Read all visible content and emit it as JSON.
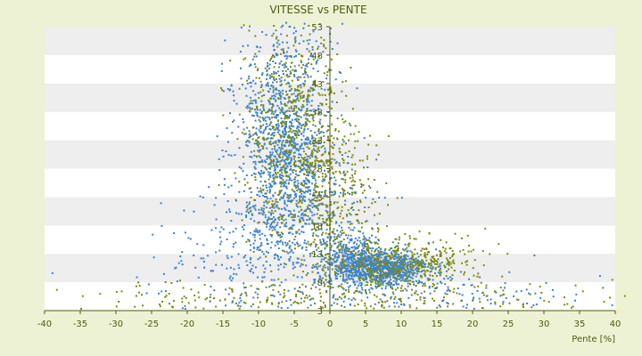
{
  "chart_data": {
    "type": "scatter",
    "title": "VITESSE vs PENTE",
    "xlabel": "Pente [%]",
    "ylabel": "",
    "xlim": [
      -40,
      40
    ],
    "ylim": [
      3,
      53
    ],
    "x_ticks": [
      "-40",
      "-35",
      "-30",
      "-25",
      "-20",
      "-15",
      "-10",
      "-5",
      "0",
      "5",
      "10",
      "15",
      "20",
      "25",
      "30",
      "35",
      "40"
    ],
    "y_ticks": [
      "3",
      "8",
      "13",
      "18",
      "23",
      "28",
      "33",
      "38",
      "43",
      "48",
      "53"
    ],
    "grid": "horizontal bands",
    "legend": "none",
    "colors": {
      "background": "#eef2d4",
      "band_light": "#ffffff",
      "band_dark": "#eeeeee",
      "text": "#4d5a12",
      "axis": "#4d5a12",
      "series_1": "#3b82d0",
      "series_2": "#7c8a10"
    },
    "series": [
      {
        "color": "#3b82d0",
        "clusters": [
          {
            "cx": -6.5,
            "cy": 34,
            "sx": 3.2,
            "sy": 10.5,
            "n": 1100
          },
          {
            "cx": -4.0,
            "cy": 22,
            "sx": 4.5,
            "sy": 7.0,
            "n": 350
          },
          {
            "cx": -12,
            "cy": 14,
            "sx": 6.5,
            "sy": 5.0,
            "n": 200
          },
          {
            "cx": 7.0,
            "cy": 10.5,
            "sx": 3.6,
            "sy": 1.6,
            "n": 950
          },
          {
            "cx": 2.5,
            "cy": 13.5,
            "sx": 1.8,
            "sy": 2.4,
            "n": 220
          },
          {
            "cx": 12,
            "cy": 6.0,
            "sx": 12,
            "sy": 1.8,
            "n": 150
          }
        ]
      },
      {
        "color": "#7c8a10",
        "clusters": [
          {
            "cx": -5.0,
            "cy": 34,
            "sx": 3.6,
            "sy": 9.5,
            "n": 700
          },
          {
            "cx": 1.5,
            "cy": 22,
            "sx": 3.0,
            "sy": 7.0,
            "n": 280
          },
          {
            "cx": 10,
            "cy": 11.5,
            "sx": 5.0,
            "sy": 2.2,
            "n": 420
          },
          {
            "cx": 0,
            "cy": 5.5,
            "sx": 18,
            "sy": 1.5,
            "n": 260
          }
        ]
      }
    ]
  }
}
